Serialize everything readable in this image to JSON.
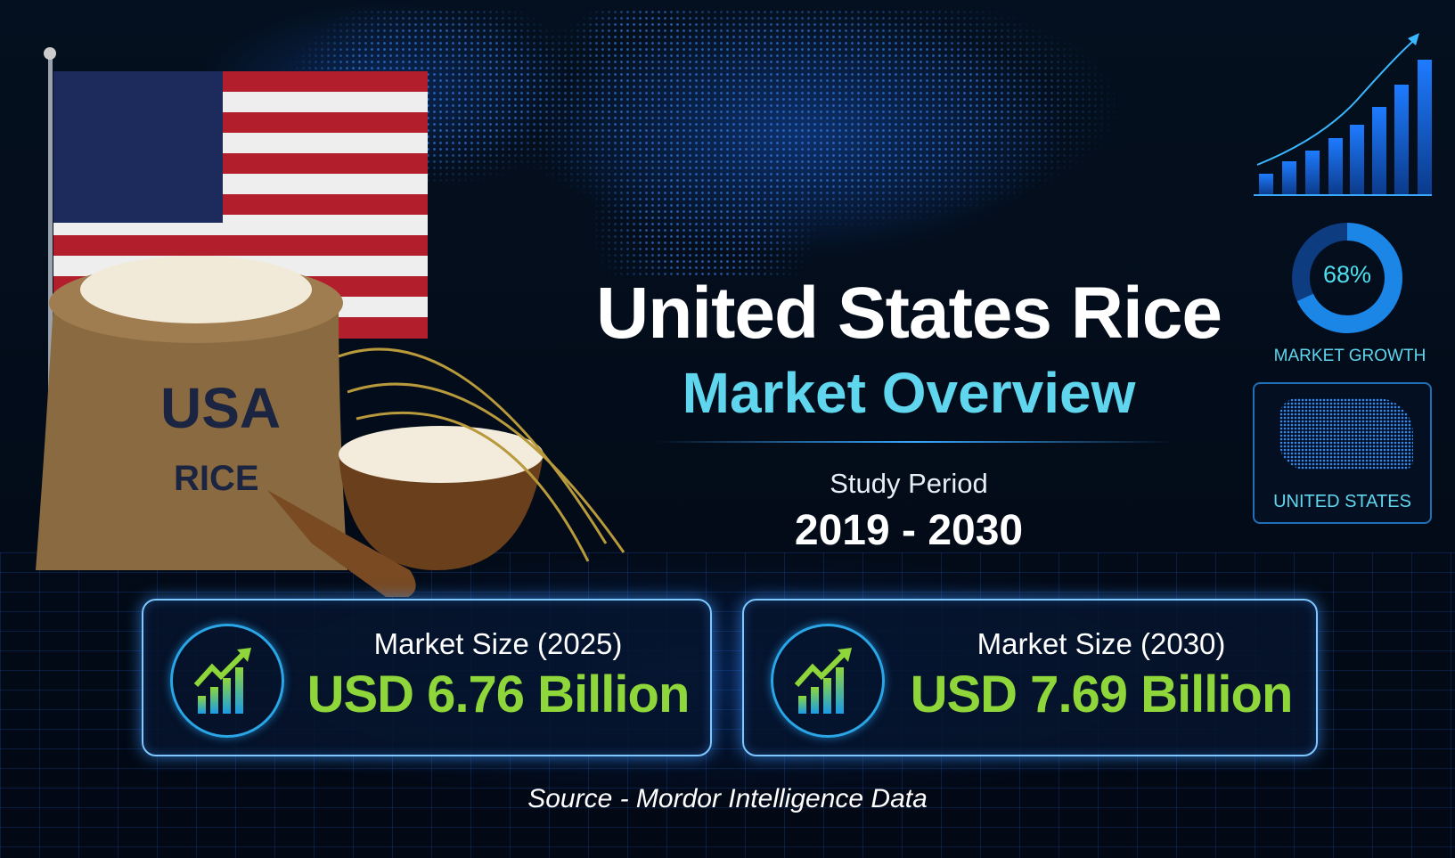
{
  "header": {
    "title": "United States Rice",
    "subtitle": "Market Overview"
  },
  "study_period": {
    "label": "Study Period",
    "value": "2019 - 2030"
  },
  "cards": [
    {
      "label": "Market Size (2025)",
      "value": "USD 6.76 Billion",
      "icon": "growth-chart-icon"
    },
    {
      "label": "Market Size (2030)",
      "value": "USD 7.69 Billion",
      "icon": "growth-chart-icon"
    }
  ],
  "source": "Source - Mordor Intelligence Data",
  "side_panel": {
    "growth_percent": 68,
    "growth_text": "68%",
    "growth_label": "MARKET GROWTH",
    "region_label": "UNITED STATES"
  },
  "sack_lettering": [
    "USA",
    "RICE"
  ],
  "colors": {
    "accent": "#5fd6ee",
    "value": "#8ed63a",
    "card_border": "#7ec8ff",
    "background": "#030a18"
  }
}
